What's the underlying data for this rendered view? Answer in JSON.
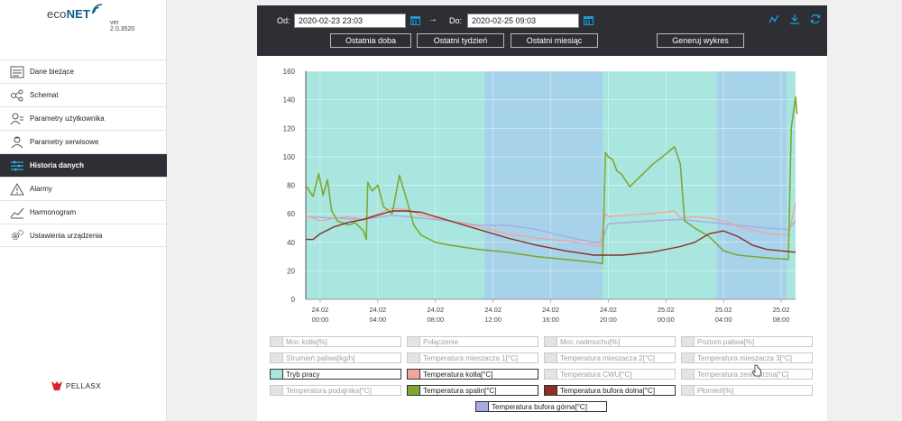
{
  "app": {
    "logo_eco": "eco",
    "logo_net": "NET",
    "version": "ver 2.0.3520",
    "brand": "PELLASX"
  },
  "sidebar": {
    "items": [
      {
        "label": "Dane bieżące",
        "icon": "list-icon",
        "active": false
      },
      {
        "label": "Schemat",
        "icon": "scheme-icon",
        "active": false
      },
      {
        "label": "Parametry użytkownika",
        "icon": "user-icon",
        "active": false
      },
      {
        "label": "Parametry serwisowe",
        "icon": "service-user-icon",
        "active": false
      },
      {
        "label": "Historia danych",
        "icon": "history-icon",
        "active": true
      },
      {
        "label": "Alarmy",
        "icon": "warning-icon",
        "active": false
      },
      {
        "label": "Harmonogram",
        "icon": "chart-line-icon",
        "active": false
      },
      {
        "label": "Ustawienia urządzenia",
        "icon": "gears-icon",
        "active": false
      }
    ]
  },
  "toolbar": {
    "from_label": "Od:",
    "from_value": "2020-02-23 23:03",
    "arrow": "→",
    "to_label": "Do:",
    "to_value": "2020-02-25 09:03",
    "btn_last_day": "Ostatnia doba",
    "btn_last_week": "Ostatni tydzień",
    "btn_last_month": "Ostatni miesiąc",
    "btn_generate": "Generuj wykres"
  },
  "chart_data": {
    "type": "line",
    "y_ticks": [
      "0",
      "20",
      "40",
      "60",
      "80",
      "100",
      "120",
      "140",
      "160"
    ],
    "ylim": [
      0,
      160
    ],
    "xlim_hours": [
      0,
      34
    ],
    "x_ticks": [
      {
        "date": "24.02",
        "time": "00:00",
        "h": 1
      },
      {
        "date": "24.02",
        "time": "04:00",
        "h": 5
      },
      {
        "date": "24.02",
        "time": "08:00",
        "h": 9
      },
      {
        "date": "24.02",
        "time": "12:00",
        "h": 13
      },
      {
        "date": "24.02",
        "time": "16:00",
        "h": 17
      },
      {
        "date": "24.02",
        "time": "20:00",
        "h": 21
      },
      {
        "date": "25.02",
        "time": "00:00",
        "h": 25
      },
      {
        "date": "25.02",
        "time": "04:00",
        "h": 29
      },
      {
        "date": "25.02",
        "time": "08:00",
        "h": 33
      }
    ],
    "bands": [
      {
        "from": 0,
        "to": 12.4,
        "color": "#a8e6df"
      },
      {
        "from": 12.4,
        "to": 20.6,
        "color": "#a7d3ea"
      },
      {
        "from": 20.6,
        "to": 28.5,
        "color": "#a8e6df"
      },
      {
        "from": 28.5,
        "to": 33.4,
        "color": "#a7d3ea"
      },
      {
        "from": 33.4,
        "to": 34,
        "color": "#a8e6df"
      }
    ],
    "series": [
      {
        "name": "Temperatura bufora górna",
        "color": "#a9a9e6",
        "points": [
          [
            0,
            58
          ],
          [
            2,
            57
          ],
          [
            4,
            56
          ],
          [
            6,
            59
          ],
          [
            8,
            57
          ],
          [
            10,
            55
          ],
          [
            12,
            52
          ],
          [
            14,
            52
          ],
          [
            16,
            49
          ],
          [
            18,
            44
          ],
          [
            20,
            40
          ],
          [
            20.5,
            40
          ],
          [
            21,
            53
          ],
          [
            24,
            55
          ],
          [
            26,
            56
          ],
          [
            27,
            55
          ],
          [
            28,
            54
          ],
          [
            30,
            52
          ],
          [
            32,
            50
          ],
          [
            33.5,
            49
          ],
          [
            34,
            55
          ]
        ]
      },
      {
        "name": "Temperatura kotła",
        "color": "#f0a5a0",
        "points": [
          [
            0,
            59
          ],
          [
            1,
            55
          ],
          [
            2,
            57
          ],
          [
            3,
            58
          ],
          [
            4,
            56
          ],
          [
            4.5,
            58
          ],
          [
            5,
            60
          ],
          [
            6,
            64
          ],
          [
            7,
            63
          ],
          [
            8,
            59
          ],
          [
            10,
            55
          ],
          [
            12,
            51
          ],
          [
            14,
            46
          ],
          [
            16,
            43
          ],
          [
            18,
            41
          ],
          [
            20,
            38
          ],
          [
            20.4,
            37
          ],
          [
            20.8,
            60
          ],
          [
            21,
            58
          ],
          [
            22,
            59
          ],
          [
            24,
            60
          ],
          [
            25,
            61
          ],
          [
            25.6,
            62
          ],
          [
            26,
            57
          ],
          [
            27,
            58
          ],
          [
            28,
            57
          ],
          [
            29,
            55
          ],
          [
            30,
            51
          ],
          [
            32,
            46
          ],
          [
            33.5,
            45
          ],
          [
            34,
            67
          ]
        ]
      },
      {
        "name": "Temperatura spalin",
        "color": "#7ea832",
        "points": [
          [
            0,
            80
          ],
          [
            0.5,
            72
          ],
          [
            0.9,
            88
          ],
          [
            1.2,
            73
          ],
          [
            1.5,
            84
          ],
          [
            1.8,
            62
          ],
          [
            2.2,
            55
          ],
          [
            3,
            52
          ],
          [
            3.4,
            54
          ],
          [
            4,
            48
          ],
          [
            4.2,
            42
          ],
          [
            4.3,
            82
          ],
          [
            4.6,
            76
          ],
          [
            5,
            80
          ],
          [
            5.4,
            65
          ],
          [
            6,
            60
          ],
          [
            6.5,
            87
          ],
          [
            7,
            70
          ],
          [
            7.5,
            52
          ],
          [
            8,
            45
          ],
          [
            9,
            40
          ],
          [
            10,
            38
          ],
          [
            12,
            35
          ],
          [
            14,
            33
          ],
          [
            16,
            30
          ],
          [
            18,
            28
          ],
          [
            20,
            26
          ],
          [
            20.6,
            25
          ],
          [
            20.8,
            103
          ],
          [
            21,
            100
          ],
          [
            21.3,
            98
          ],
          [
            21.6,
            90
          ],
          [
            21.9,
            88
          ],
          [
            22.5,
            79
          ],
          [
            23,
            84
          ],
          [
            24,
            94
          ],
          [
            25,
            102
          ],
          [
            25.6,
            107
          ],
          [
            26,
            95
          ],
          [
            26.3,
            55
          ],
          [
            27,
            50
          ],
          [
            28,
            44
          ],
          [
            29,
            34
          ],
          [
            30,
            31
          ],
          [
            32,
            29
          ],
          [
            33.5,
            28
          ],
          [
            33.7,
            120
          ],
          [
            34,
            142
          ],
          [
            34.1,
            130
          ]
        ]
      },
      {
        "name": "Temperatura bufora dolna",
        "color": "#8b2e24",
        "points": [
          [
            0,
            42
          ],
          [
            0.5,
            42
          ],
          [
            1,
            46
          ],
          [
            2,
            51
          ],
          [
            3,
            54
          ],
          [
            4,
            56
          ],
          [
            5,
            59
          ],
          [
            6,
            62
          ],
          [
            7,
            62
          ],
          [
            8,
            61
          ],
          [
            10,
            55
          ],
          [
            12,
            49
          ],
          [
            14,
            43
          ],
          [
            16,
            38
          ],
          [
            18,
            34
          ],
          [
            20,
            31
          ],
          [
            22,
            31
          ],
          [
            24,
            33
          ],
          [
            26,
            37
          ],
          [
            27,
            40
          ],
          [
            28,
            46
          ],
          [
            29,
            48
          ],
          [
            30,
            44
          ],
          [
            31,
            38
          ],
          [
            32,
            35
          ],
          [
            34,
            33
          ]
        ]
      }
    ]
  },
  "legend": {
    "items": [
      {
        "label": "Moc kotła[%]",
        "color": "#e4e4e4",
        "on": false
      },
      {
        "label": "Połączenie",
        "color": "#e4e4e4",
        "on": false
      },
      {
        "label": "Moc nadmuchu[%]",
        "color": "#e4e4e4",
        "on": false
      },
      {
        "label": "Poziom paliwa[%]",
        "color": "#e4e4e4",
        "on": false
      },
      {
        "label": "Strumień paliwa[kg/h]",
        "color": "#e4e4e4",
        "on": false
      },
      {
        "label": "Temperatura mieszacza 1[°C]",
        "color": "#e4e4e4",
        "on": false
      },
      {
        "label": "Temperatura mieszacza 2[°C]",
        "color": "#e4e4e4",
        "on": false
      },
      {
        "label": "Temperatura mieszacza 3[°C]",
        "color": "#e4e4e4",
        "on": false
      },
      {
        "label": "Tryb pracy",
        "color": "#a8e6df",
        "on": true
      },
      {
        "label": "Temperatura kotła[°C]",
        "color": "#f0a5a0",
        "on": true
      },
      {
        "label": "Temperatura CWU[°C]",
        "color": "#e4e4e4",
        "on": false
      },
      {
        "label": "Temperatura zewnętrzna[°C]",
        "color": "#e4e4e4",
        "on": false
      },
      {
        "label": "Temperatura podajnika[°C]",
        "color": "#e4e4e4",
        "on": false
      },
      {
        "label": "Temperatura spalin[°C]",
        "color": "#7ea832",
        "on": true
      },
      {
        "label": "Temperatura bufora dolna[°C]",
        "color": "#8b2e24",
        "on": true
      },
      {
        "label": "Płomień[%]",
        "color": "#e4e4e4",
        "on": false
      },
      {
        "label": "Temperatura bufora górna[°C]",
        "color": "#a9a9e6",
        "on": true
      }
    ]
  },
  "colors": {
    "toolbar_bg": "#2d2f34",
    "accent": "#1a9bd6",
    "active_menu": "#2e2f34"
  }
}
